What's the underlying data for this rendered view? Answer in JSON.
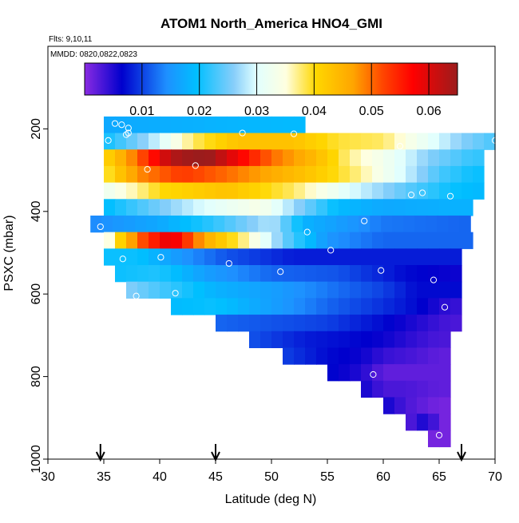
{
  "chart_data": {
    "type": "heatmap",
    "title": "ATOM1 North_America HNO4_GMI",
    "subtitle_flights": "Flts: 9,10,11",
    "subtitle_dates": "MMDD: 0820,0822,0823",
    "xlabel": "Latitude (deg N)",
    "ylabel": "PSXC (mbar)",
    "xlim": [
      30,
      70
    ],
    "ylim": [
      1000,
      0
    ],
    "x_ticks": [
      "30",
      "35",
      "40",
      "45",
      "50",
      "55",
      "60",
      "65",
      "70"
    ],
    "y_ticks": [
      "200",
      "400",
      "600",
      "800",
      "1000"
    ],
    "colorbar": {
      "range": [
        0,
        0.065
      ],
      "tick_labels": [
        "0.01",
        "0.02",
        "0.03",
        "0.04",
        "0.05",
        "0.06"
      ],
      "tick_values": [
        0.01,
        0.02,
        0.03,
        0.04,
        0.05,
        0.06
      ],
      "colors": [
        "#8a2be2",
        "#0000cd",
        "#1e90ff",
        "#00bfff",
        "#87cefa",
        "#e0ffff",
        "#ffffe0",
        "#ffd700",
        "#ffa500",
        "#ff4500",
        "#ff0000",
        "#9b1c1c"
      ],
      "color_stops": [
        0,
        0.1,
        0.22,
        0.3,
        0.4,
        0.46,
        0.54,
        0.62,
        0.72,
        0.8,
        0.88,
        1.0
      ]
    },
    "arrow_latitudes": [
      34.7,
      45,
      67
    ],
    "grid": {
      "lat_step": 1,
      "pressure_step": 40,
      "lat_start": 32.8,
      "rows": [
        {
          "p": 190,
          "lat_min": 35,
          "lat_max": 52,
          "anchors": [
            [
              35,
              0.017
            ],
            [
              52,
              0.019
            ]
          ]
        },
        {
          "p": 230,
          "lat_min": 35,
          "lat_max": 70,
          "anchors": [
            [
              35,
              0.02
            ],
            [
              39,
              0.027
            ],
            [
              43,
              0.038
            ],
            [
              47,
              0.043
            ],
            [
              52,
              0.043
            ],
            [
              56,
              0.039
            ],
            [
              60,
              0.038
            ],
            [
              64,
              0.031
            ],
            [
              67,
              0.026
            ],
            [
              70,
              0.023
            ]
          ]
        },
        {
          "p": 270,
          "lat_min": 35,
          "lat_max": 68,
          "anchors": [
            [
              35,
              0.04
            ],
            [
              38,
              0.05
            ],
            [
              41,
              0.063
            ],
            [
              44,
              0.066
            ],
            [
              47,
              0.058
            ],
            [
              50,
              0.05
            ],
            [
              54,
              0.044
            ],
            [
              57,
              0.037
            ],
            [
              60,
              0.033
            ],
            [
              64,
              0.026
            ],
            [
              68,
              0.022
            ]
          ]
        },
        {
          "p": 310,
          "lat_min": 35,
          "lat_max": 68,
          "anchors": [
            [
              35,
              0.038
            ],
            [
              38,
              0.048
            ],
            [
              42,
              0.053
            ],
            [
              46,
              0.05
            ],
            [
              50,
              0.046
            ],
            [
              54,
              0.042
            ],
            [
              58,
              0.037
            ],
            [
              62,
              0.029
            ],
            [
              65,
              0.023
            ],
            [
              68,
              0.02
            ]
          ]
        },
        {
          "p": 350,
          "lat_min": 35,
          "lat_max": 68,
          "anchors": [
            [
              35,
              0.032
            ],
            [
              40,
              0.04
            ],
            [
              46,
              0.043
            ],
            [
              52,
              0.038
            ],
            [
              57,
              0.03
            ],
            [
              62,
              0.024
            ],
            [
              66,
              0.02
            ],
            [
              68,
              0.019
            ]
          ]
        },
        {
          "p": 390,
          "lat_min": 35,
          "lat_max": 67,
          "anchors": [
            [
              35,
              0.019
            ],
            [
              39,
              0.024
            ],
            [
              44,
              0.03
            ],
            [
              49,
              0.034
            ],
            [
              52,
              0.027
            ],
            [
              56,
              0.019
            ],
            [
              60,
              0.017
            ],
            [
              67,
              0.018
            ]
          ]
        },
        {
          "p": 430,
          "lat_min": 33.8,
          "lat_max": 67,
          "anchors": [
            [
              34,
              0.014
            ],
            [
              40,
              0.017
            ],
            [
              45,
              0.022
            ],
            [
              50,
              0.028
            ],
            [
              53,
              0.018
            ],
            [
              60,
              0.013
            ],
            [
              67,
              0.012
            ]
          ]
        },
        {
          "p": 470,
          "lat_min": 35,
          "lat_max": 67,
          "anchors": [
            [
              35,
              0.032
            ],
            [
              38,
              0.05
            ],
            [
              41,
              0.06
            ],
            [
              44,
              0.046
            ],
            [
              48,
              0.036
            ],
            [
              51,
              0.025
            ],
            [
              55,
              0.015
            ],
            [
              60,
              0.012
            ],
            [
              67,
              0.012
            ]
          ]
        },
        {
          "p": 510,
          "lat_min": 35,
          "lat_max": 66,
          "anchors": [
            [
              35,
              0.02
            ],
            [
              38,
              0.02
            ],
            [
              42,
              0.015
            ],
            [
              46,
              0.011
            ],
            [
              52,
              0.008
            ],
            [
              60,
              0.008
            ],
            [
              66,
              0.008
            ]
          ]
        },
        {
          "p": 550,
          "lat_min": 36,
          "lat_max": 66,
          "anchors": [
            [
              36,
              0.02
            ],
            [
              40,
              0.021
            ],
            [
              44,
              0.016
            ],
            [
              50,
              0.012
            ],
            [
              56,
              0.011
            ],
            [
              62,
              0.007
            ],
            [
              66,
              0.006
            ]
          ]
        },
        {
          "p": 590,
          "lat_min": 37,
          "lat_max": 66,
          "anchors": [
            [
              37,
              0.026
            ],
            [
              40,
              0.023
            ],
            [
              45,
              0.018
            ],
            [
              50,
              0.016
            ],
            [
              55,
              0.013
            ],
            [
              60,
              0.01
            ],
            [
              63,
              0.007
            ],
            [
              66,
              0.007
            ]
          ]
        },
        {
          "p": 630,
          "lat_min": 41,
          "lat_max": 66,
          "anchors": [
            [
              41,
              0.019
            ],
            [
              45,
              0.02
            ],
            [
              50,
              0.016
            ],
            [
              55,
              0.012
            ],
            [
              60,
              0.009
            ],
            [
              63,
              0.007
            ],
            [
              66,
              0.004
            ]
          ]
        },
        {
          "p": 670,
          "lat_min": 45,
          "lat_max": 66,
          "anchors": [
            [
              45,
              0.012
            ],
            [
              50,
              0.011
            ],
            [
              55,
              0.01
            ],
            [
              60,
              0.007
            ],
            [
              63,
              0.005
            ],
            [
              66,
              0.003
            ]
          ]
        },
        {
          "p": 710,
          "lat_min": 48,
          "lat_max": 65,
          "anchors": [
            [
              48,
              0.011
            ],
            [
              53,
              0.008
            ],
            [
              57,
              0.007
            ],
            [
              60,
              0.006
            ],
            [
              63,
              0.004
            ],
            [
              65,
              0.003
            ]
          ]
        },
        {
          "p": 750,
          "lat_min": 51,
          "lat_max": 65,
          "anchors": [
            [
              51,
              0.01
            ],
            [
              55,
              0.007
            ],
            [
              58,
              0.006
            ],
            [
              60,
              0.004
            ],
            [
              63,
              0.003
            ],
            [
              65,
              0.002
            ]
          ]
        },
        {
          "p": 790,
          "lat_min": 55,
          "lat_max": 65,
          "anchors": [
            [
              55,
              0.007
            ],
            [
              58,
              0.005
            ],
            [
              60,
              0.002
            ],
            [
              63,
              0.002
            ],
            [
              65,
              0.002
            ]
          ]
        },
        {
          "p": 830,
          "lat_min": 58,
          "lat_max": 65,
          "anchors": [
            [
              58,
              0.006
            ],
            [
              60,
              0.003
            ],
            [
              62,
              0.003
            ],
            [
              65,
              0.002
            ]
          ]
        },
        {
          "p": 870,
          "lat_min": 60,
          "lat_max": 65,
          "anchors": [
            [
              60,
              0.006
            ],
            [
              62,
              0.003
            ],
            [
              65,
              0.001
            ]
          ]
        },
        {
          "p": 910,
          "lat_min": 62,
          "lat_max": 65,
          "anchors": [
            [
              62,
              0.002
            ],
            [
              64,
              0.006
            ],
            [
              65,
              0.001
            ]
          ]
        },
        {
          "p": 950,
          "lat_min": 64,
          "lat_max": 65,
          "anchors": [
            [
              64,
              0.001
            ],
            [
              65,
              0.001
            ]
          ]
        }
      ]
    },
    "observation_points": [
      [
        36.0,
        187
      ],
      [
        36.6,
        190
      ],
      [
        37.2,
        198
      ],
      [
        37.2,
        210
      ],
      [
        37.0,
        214
      ],
      [
        35.4,
        228
      ],
      [
        47.4,
        210
      ],
      [
        52.0,
        212
      ],
      [
        70.0,
        228
      ],
      [
        61.5,
        242
      ],
      [
        43.2,
        289
      ],
      [
        38.9,
        298
      ],
      [
        62.5,
        360
      ],
      [
        63.5,
        355
      ],
      [
        66.0,
        363
      ],
      [
        58.3,
        423
      ],
      [
        34.7,
        437
      ],
      [
        53.2,
        450
      ],
      [
        55.3,
        494
      ],
      [
        36.7,
        515
      ],
      [
        40.1,
        511
      ],
      [
        46.2,
        526
      ],
      [
        50.8,
        546
      ],
      [
        59.8,
        543
      ],
      [
        64.5,
        566
      ],
      [
        37.9,
        605
      ],
      [
        41.4,
        598
      ],
      [
        65.5,
        632
      ],
      [
        59.1,
        795
      ],
      [
        65.0,
        942
      ]
    ]
  }
}
